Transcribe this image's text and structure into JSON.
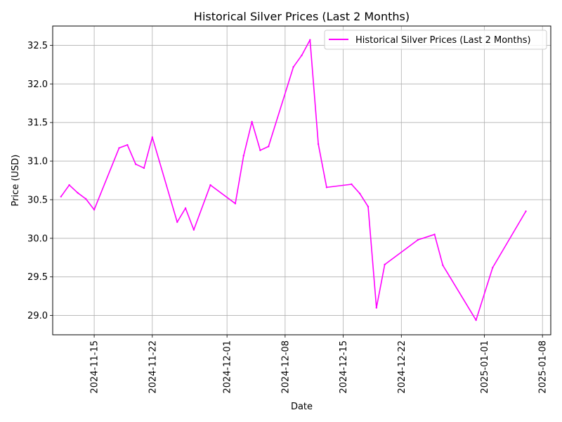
{
  "chart_data": {
    "type": "line",
    "title": "Historical Silver Prices (Last 2 Months)",
    "xlabel": "Date",
    "ylabel": "Price (USD)",
    "xlim": [
      "2024-11-10",
      "2025-01-09"
    ],
    "ylim": [
      28.75,
      32.75
    ],
    "grid": true,
    "legend_position": "top-right",
    "x_ticks": [
      "2024-11-15",
      "2024-11-22",
      "2024-12-01",
      "2024-12-08",
      "2024-12-15",
      "2024-12-22",
      "2025-01-01",
      "2025-01-08"
    ],
    "y_ticks": [
      "29.0",
      "29.5",
      "30.0",
      "30.5",
      "31.0",
      "31.5",
      "32.0",
      "32.5"
    ],
    "series": [
      {
        "name": "Historical Silver Prices (Last 2 Months)",
        "color": "#ff00ff",
        "points": [
          [
            "2024-11-11",
            30.54
          ],
          [
            "2024-11-12",
            30.69
          ],
          [
            "2024-11-13",
            30.59
          ],
          [
            "2024-11-14",
            30.51
          ],
          [
            "2024-11-15",
            30.37
          ],
          [
            "2024-11-18",
            31.17
          ],
          [
            "2024-11-19",
            31.21
          ],
          [
            "2024-11-20",
            30.96
          ],
          [
            "2024-11-21",
            30.91
          ],
          [
            "2024-11-22",
            31.31
          ],
          [
            "2024-11-25",
            30.21
          ],
          [
            "2024-11-26",
            30.39
          ],
          [
            "2024-11-27",
            30.11
          ],
          [
            "2024-11-29",
            30.69
          ],
          [
            "2024-12-02",
            30.45
          ],
          [
            "2024-12-03",
            31.07
          ],
          [
            "2024-12-04",
            31.51
          ],
          [
            "2024-12-05",
            31.14
          ],
          [
            "2024-12-06",
            31.19
          ],
          [
            "2024-12-09",
            32.22
          ],
          [
            "2024-12-10",
            32.37
          ],
          [
            "2024-12-11",
            32.57
          ],
          [
            "2024-12-12",
            31.22
          ],
          [
            "2024-12-13",
            30.66
          ],
          [
            "2024-12-16",
            30.7
          ],
          [
            "2024-12-17",
            30.58
          ],
          [
            "2024-12-18",
            30.41
          ],
          [
            "2024-12-19",
            29.1
          ],
          [
            "2024-12-20",
            29.66
          ],
          [
            "2024-12-24",
            29.98
          ],
          [
            "2024-12-26",
            30.05
          ],
          [
            "2024-12-27",
            29.65
          ],
          [
            "2024-12-31",
            28.94
          ],
          [
            "2025-01-02",
            29.62
          ],
          [
            "2025-01-06",
            30.35
          ]
        ]
      }
    ]
  }
}
